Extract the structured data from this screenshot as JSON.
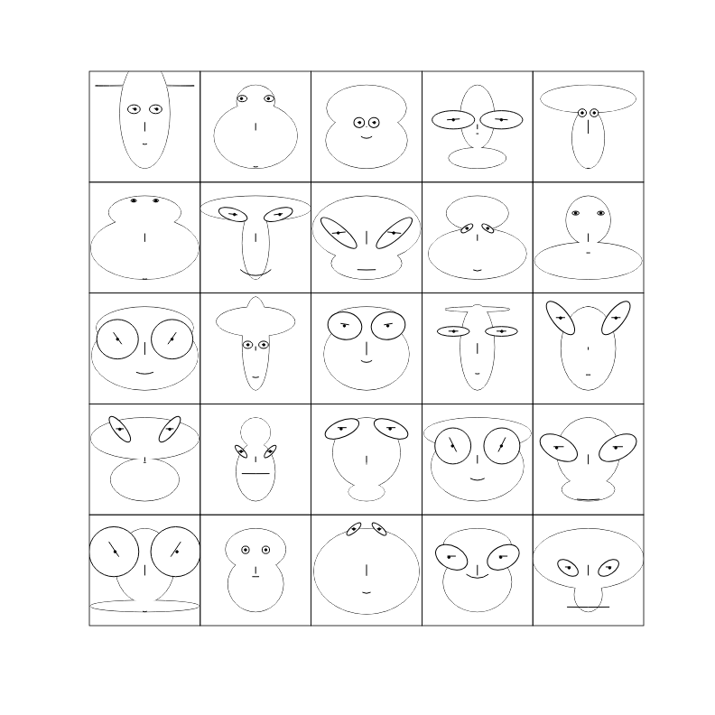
{
  "chart_data": {
    "type": "chernoff",
    "xlim": [
      -1.2,
      1.2
    ],
    "ylim": [
      -1.2,
      1.2
    ],
    "faces": [
      {
        "features": [
          0.9,
          0.6,
          0.96,
          0.82,
          0.34,
          0.66,
          0.38,
          0.6,
          0.1,
          0.38,
          0.5,
          0.5,
          0.65,
          0.17,
          0.1,
          0.3,
          0.5,
          0.4
        ]
      },
      {
        "features": [
          0.9,
          0.3,
          0.61,
          0.16,
          0.7,
          0.52,
          0.87,
          0.6,
          0.1,
          0.61,
          0.93,
          0.5,
          0.6,
          0.11,
          0.8,
          0.2,
          0.5,
          0.2
        ]
      },
      {
        "features": [
          0.9,
          0.4,
          0.45,
          0.61,
          0.68,
          0.05,
          0.25,
          0.5,
          0.3,
          0.09,
          0.22,
          0.55,
          0.9,
          0.13,
          0.3,
          0.1,
          0.5,
          0.5
        ]
      },
      {
        "features": [
          0.9,
          0.02,
          0.25,
          0.12,
          0.42,
          0.35,
          0.15,
          0.1,
          0.05,
          0.15,
          0.3,
          0.5,
          0.38,
          0.82,
          0.5,
          0.1,
          0.45,
          0.5
        ]
      },
      {
        "features": [
          0.9,
          0.1,
          0.66,
          0.78,
          0.15,
          0.99,
          0.9,
          0.05,
          0.05,
          0.3,
          0.2,
          0.5,
          0.9,
          0.08,
          0.5,
          0.3,
          0.5,
          0.3
        ]
      },
      {
        "features": [
          0.9,
          0.25,
          0.6,
          0.53,
          0.97,
          0.6,
          0.9,
          0.5,
          0.1,
          0.8,
          0.9,
          0.5,
          0.45,
          0.02,
          0.5,
          0.3,
          0.5,
          0.3
        ]
      },
      {
        "features": [
          0.9,
          0.3,
          0.69,
          0.95,
          0.09,
          0.6,
          0.82,
          0.2,
          0.9,
          0.5,
          0.85,
          0.65,
          0.35,
          0.54,
          0.3,
          0.1,
          0.6,
          0.5
        ]
      },
      {
        "features": [
          0.9,
          0.3,
          0.23,
          0.92,
          0.56,
          0.95,
          0.7,
          0.03,
          0.4,
          0.1,
          0.55,
          0.85,
          0.25,
          0.88,
          0.55,
          0.1,
          0.4,
          0.5
        ]
      },
      {
        "features": [
          0.9,
          0.05,
          0.58,
          0.42,
          0.86,
          0.45,
          0.72,
          0.5,
          0.2,
          0.2,
          0.4,
          0.2,
          0.35,
          0.19,
          0.5,
          0.3,
          0.5,
          0.4
        ]
      },
      {
        "features": [
          0.9,
          0.05,
          0.42,
          0.23,
          0.96,
          0.6,
          0.33,
          0.02,
          0.08,
          0.53,
          0.99,
          0.5,
          0.5,
          0.05,
          0.5,
          0.2,
          0.7,
          0.6
        ]
      },
      {
        "features": [
          0.9,
          0.6,
          0.5,
          0.8,
          0.95,
          0.9,
          0.55,
          0.2,
          0.4,
          0.2,
          0.7,
          0.5,
          0.9,
          0.8,
          0.5,
          0.1,
          0.8,
          0.3
        ]
      },
      {
        "features": [
          0.9,
          0.85,
          0.64,
          0.6,
          0.09,
          0.3,
          0.63,
          0.5,
          0.15,
          0.08,
          0.33,
          0.5,
          0.7,
          0.11,
          0.4,
          0.2,
          0.5,
          0.5
        ]
      },
      {
        "features": [
          0.9,
          0.16,
          0.76,
          0.43,
          0.72,
          0.95,
          0.3,
          0.5,
          0.3,
          0.49,
          0.5,
          0.6,
          0.75,
          0.64,
          0.55,
          0.25,
          0.55,
          0.4
        ]
      },
      {
        "features": [
          0.9,
          0.15,
          0.92,
          0.45,
          0.17,
          0.75,
          0.55,
          0.6,
          0.1,
          0.37,
          0.85,
          0.5,
          0.25,
          0.6,
          0.45,
          0.1,
          0.5,
          0.5
        ]
      },
      {
        "features": [
          0.9,
          0.9,
          0.5,
          0.1,
          0.39,
          0.2,
          0.57,
          0.01,
          0.1,
          0.66,
          0.8,
          0.95,
          0.35,
          0.78,
          0.5,
          0.1,
          0.5,
          0.35
        ]
      },
      {
        "features": [
          0.9,
          0.02,
          0.5,
          0.92,
          0.54,
          0.3,
          0.07,
          0.5,
          0.05,
          0.65,
          1.0,
          0.95,
          0.3,
          0.58,
          0.5,
          0.2,
          0.5,
          0.4
        ]
      },
      {
        "features": [
          0.9,
          0.1,
          0.64,
          0.07,
          0.22,
          0.4,
          0.31,
          0.002,
          0.6,
          0.17,
          0.7,
          0.9,
          0.3,
          0.25,
          0.5,
          0.1,
          0.5,
          0.6
        ]
      },
      {
        "features": [
          0.9,
          0.1,
          0.18,
          0.48,
          0.19,
          0.5,
          0.1,
          0.01,
          0.02,
          0.66,
          0.7,
          0.3,
          0.4,
          0.68,
          0.6,
          0.3,
          0.5,
          0.4
        ]
      },
      {
        "features": [
          0.9,
          0.38,
          0.62,
          0.91,
          0.8,
          0.6,
          0.45,
          0.3,
          0.35,
          0.29,
          0.7,
          0.5,
          0.95,
          0.68,
          0.55,
          0.15,
          0.9,
          0.3
        ]
      },
      {
        "features": [
          0.9,
          0.2,
          0.18,
          0.43,
          0.37,
          0.7,
          0.88,
          0.05,
          0.5,
          0.25,
          1.0,
          0.75,
          0.5,
          0.78,
          0.7,
          0.2,
          0.5,
          0.4
        ]
      },
      {
        "features": [
          0.9,
          0.05,
          0.13,
          0.39,
          0.98,
          0.75,
          0.9,
          0.8,
          0.1,
          0.4,
          0.65,
          0.5,
          0.95,
          0.98,
          0.4,
          0.2,
          0.8,
          0.3
        ]
      },
      {
        "features": [
          0.9,
          0.3,
          0.5,
          0.4,
          0.4,
          0.5,
          0.14,
          0.02,
          0.15,
          0.44,
          0.7,
          0.5,
          0.95,
          0.06,
          0.5,
          0.2,
          0.5,
          0.3
        ]
      },
      {
        "features": [
          0.9,
          0.1,
          0.0,
          0.89,
          0.2,
          0.8,
          0.5,
          0.5,
          0.2,
          0.89,
          0.4,
          0.15,
          0.3,
          0.29,
          0.5,
          0.2,
          0.5,
          0.4
        ]
      },
      {
        "features": [
          0.9,
          0.2,
          0.6,
          0.48,
          0.54,
          0.75,
          0.17,
          0.25,
          0.6,
          0.28,
          0.95,
          0.75,
          0.6,
          0.64,
          0.8,
          0.2,
          0.5,
          0.4
        ]
      },
      {
        "features": [
          0.9,
          0.24,
          0.29,
          0.95,
          0.1,
          0.75,
          0.8,
          0.002,
          0.92,
          0.05,
          0.95,
          0.8,
          0.5,
          0.4,
          0.3,
          0.3,
          0.5,
          0.4
        ]
      }
    ]
  }
}
